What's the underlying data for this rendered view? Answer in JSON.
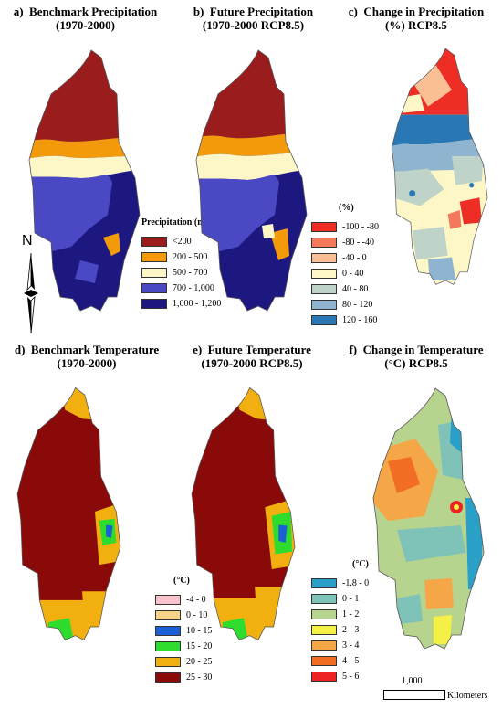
{
  "panels": {
    "a": {
      "letter": "a)",
      "title1": "Benchmark Precipitation",
      "title2": "(1970-2000)"
    },
    "b": {
      "letter": "b)",
      "title1": "Future Precipitation",
      "title2": "(1970-2000 RCP8.5)"
    },
    "c": {
      "letter": "c)",
      "title1": "Change in Precipitation",
      "title2": "(%) RCP8.5"
    },
    "d": {
      "letter": "d)",
      "title1": "Benchmark Temperature",
      "title2": "(1970-2000)"
    },
    "e": {
      "letter": "e)",
      "title1": "Future Temperature",
      "title2": "(1970-2000 RCP8.5)"
    },
    "f": {
      "letter": "f)",
      "title1": "Change in Temperature",
      "title2": "(°C) RCP8.5"
    }
  },
  "legends": {
    "precipitation": {
      "title": "Precipitation (mm)",
      "items": [
        {
          "label": "<200",
          "color": "#9b1c1c"
        },
        {
          "label": "200 - 500",
          "color": "#f39a0a"
        },
        {
          "label": "500 - 700",
          "color": "#fdf7c8"
        },
        {
          "label": "700 - 1,000",
          "color": "#4b48c4"
        },
        {
          "label": "1,000 - 1,200",
          "color": "#1c1880"
        }
      ]
    },
    "precip_change": {
      "title": "(%)",
      "items": [
        {
          "label": "-100 - -80",
          "color": "#ee2d24"
        },
        {
          "label": "-80 - -40",
          "color": "#f4795a"
        },
        {
          "label": "-40 - 0",
          "color": "#fbbf96"
        },
        {
          "label": "0 - 40",
          "color": "#fdf7c8"
        },
        {
          "label": "40 - 80",
          "color": "#bfd3c8"
        },
        {
          "label": "80 - 120",
          "color": "#8fb4cf"
        },
        {
          "label": "120 - 160",
          "color": "#2a77b6"
        }
      ]
    },
    "temperature": {
      "title": "(°C)",
      "items": [
        {
          "label": "-4 - 0",
          "color": "#fbc4cc"
        },
        {
          "label": "0 - 10",
          "color": "#f7d38a"
        },
        {
          "label": "10 - 15",
          "color": "#1a5fd4"
        },
        {
          "label": "15 - 20",
          "color": "#2edc2e"
        },
        {
          "label": "20 - 25",
          "color": "#f2b010"
        },
        {
          "label": "25 - 30",
          "color": "#8a0a0a"
        }
      ]
    },
    "temp_change": {
      "title": "(°C)",
      "items": [
        {
          "label": "-1.8 - 0",
          "color": "#2a9fc8"
        },
        {
          "label": "0 - 1",
          "color": "#7fc2b8"
        },
        {
          "label": "1 - 2",
          "color": "#b7d48e"
        },
        {
          "label": "2 - 3",
          "color": "#f5f046"
        },
        {
          "label": "3 - 4",
          "color": "#f5a646"
        },
        {
          "label": "4 - 5",
          "color": "#f26e24"
        },
        {
          "label": "5 - 6",
          "color": "#ee2222"
        }
      ]
    }
  },
  "north_label": "N",
  "scale": {
    "value": "1,000",
    "unit": "Kilometers"
  }
}
